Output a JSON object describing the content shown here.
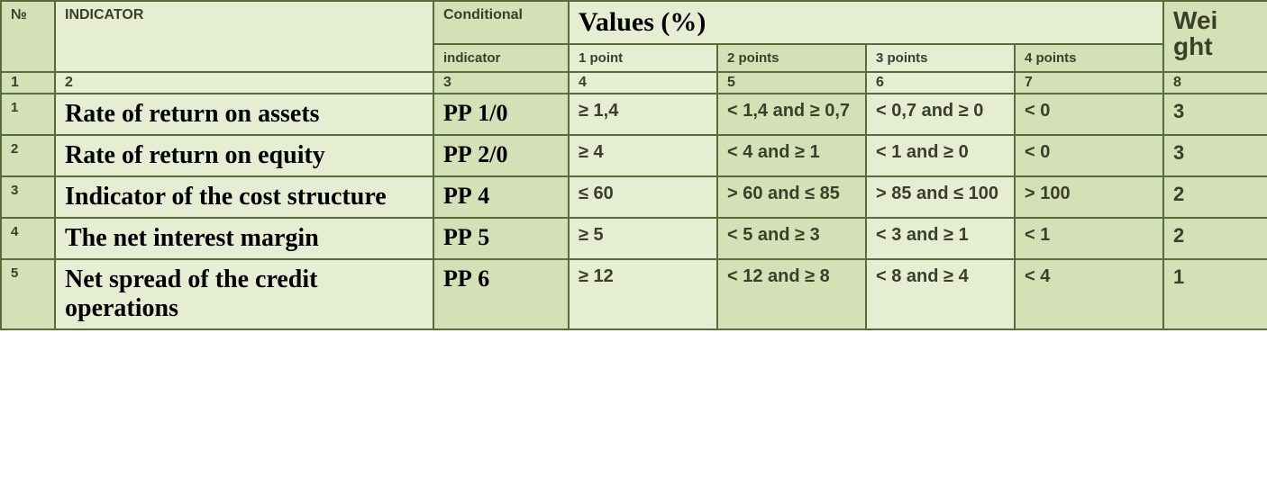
{
  "header": {
    "num": "№",
    "indicator": "INDICATOR",
    "conditional": "Conditional",
    "values": "Values (%)",
    "weight_line1": "Wei",
    "weight_line2": "ght",
    "sub_indicator": "indicator",
    "p1": "1 point",
    "p2": "2 points",
    "p3": "3 points",
    "p4": "4 points"
  },
  "colnums": {
    "c1": "1",
    "c2": "2",
    "c3": "3",
    "c4": "4",
    "c5": "5",
    "c6": "6",
    "c7": "7",
    "c8": "8"
  },
  "rows": [
    {
      "n": "1",
      "indicator": "Rate of return on assets",
      "cond": "РР 1/0",
      "p1": "≥ 1,4",
      "p2": "< 1,4 and ≥ 0,7",
      "p3": "< 0,7 and ≥ 0",
      "p4": "< 0",
      "w": "3"
    },
    {
      "n": "2",
      "indicator": "Rate of return on equity",
      "cond": "РР 2/0",
      "p1": "≥ 4",
      "p2": "< 4 and ≥ 1",
      "p3": "< 1 and ≥ 0",
      "p4": "< 0",
      "w": "3"
    },
    {
      "n": "3",
      "indicator": "Indicator of the cost structure",
      "cond": "РР 4",
      "p1": "≤ 60",
      "p2": "> 60 and ≤ 85",
      "p3": "> 85 and ≤ 100",
      "p4": "> 100",
      "w": "2"
    },
    {
      "n": "4",
      "indicator": "The net interest margin",
      "cond": "РР 5",
      "p1": "≥ 5",
      "p2": "< 5 and ≥ 3",
      "p3": "< 3 and ≥ 1",
      "p4": "< 1",
      "w": "2"
    },
    {
      "n": "5",
      "indicator": "Net spread of the credit operations",
      "cond": "РР 6",
      "p1": "≥ 12",
      "p2": "< 12 and ≥ 8",
      "p3": "< 8 and ≥ 4",
      "p4": "< 4",
      "w": "1"
    }
  ]
}
